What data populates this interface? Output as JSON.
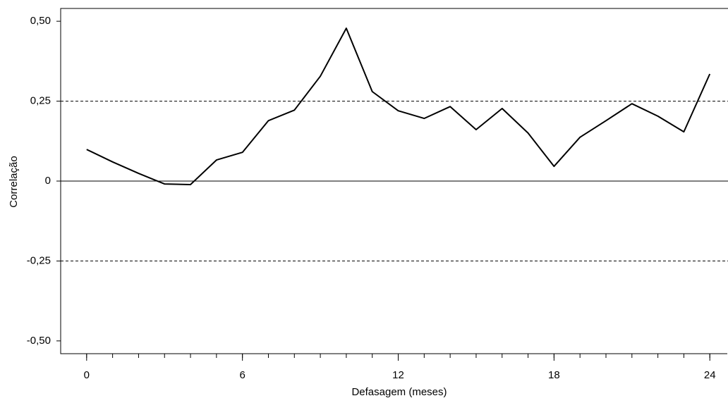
{
  "chart_data": {
    "type": "line",
    "x": [
      0,
      1,
      2,
      3,
      4,
      5,
      6,
      7,
      8,
      9,
      10,
      11,
      12,
      13,
      14,
      15,
      16,
      17,
      18,
      19,
      20,
      21,
      22,
      23,
      24
    ],
    "values": [
      0.099,
      0.06,
      0.024,
      -0.009,
      -0.011,
      0.066,
      0.09,
      0.189,
      0.222,
      0.328,
      0.478,
      0.28,
      0.22,
      0.196,
      0.233,
      0.161,
      0.227,
      0.15,
      0.046,
      0.137,
      0.189,
      0.242,
      0.203,
      0.154,
      0.335
    ],
    "color": "#000000",
    "xlabel": "Defasagem (meses)",
    "ylabel": "Correlação",
    "xlim": [
      -1,
      24.7
    ],
    "ylim": [
      -0.54,
      0.54
    ],
    "xticks": [
      0,
      6,
      12,
      18,
      24
    ],
    "minor_xticks": [
      0,
      1,
      2,
      3,
      4,
      5,
      6,
      7,
      8,
      9,
      10,
      11,
      12,
      13,
      14,
      15,
      16,
      17,
      18,
      19,
      20,
      21,
      22,
      23,
      24
    ],
    "yticks": [
      {
        "value": 0.5,
        "label": "0,50"
      },
      {
        "value": 0.25,
        "label": "0,25"
      },
      0,
      {
        "value": -0.25,
        "label": "-0,25"
      },
      {
        "value": -0.5,
        "label": "-0,50"
      }
    ],
    "confidence_bounds": [
      -0.25,
      0.25
    ],
    "zero_line": true
  }
}
